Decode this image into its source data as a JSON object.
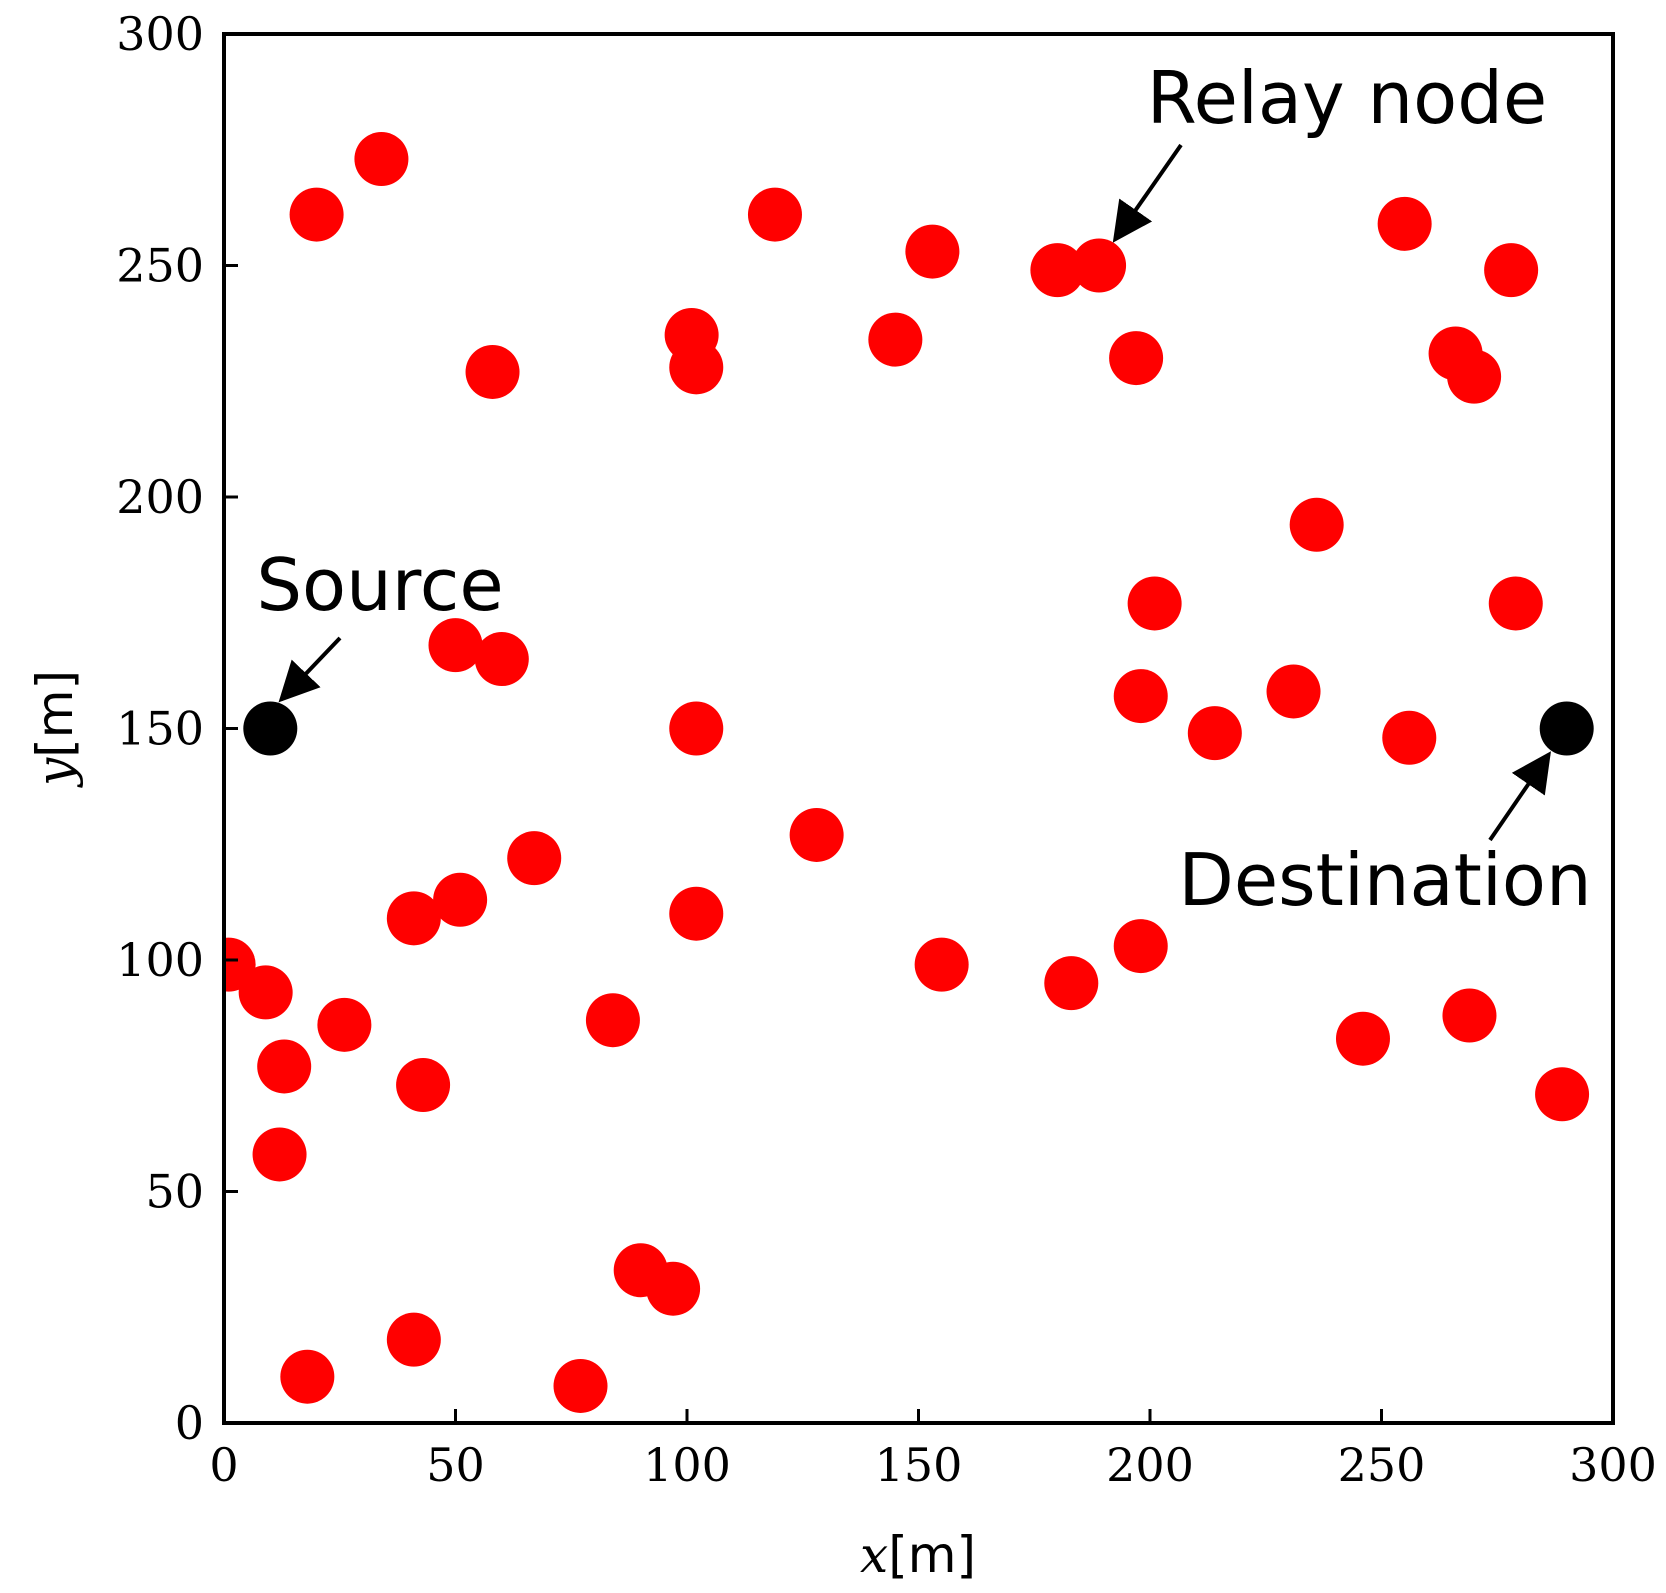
{
  "chart_data": {
    "type": "scatter",
    "xlim": [
      0,
      300
    ],
    "ylim": [
      0,
      300
    ],
    "xticks": [
      0,
      50,
      100,
      150,
      200,
      250,
      300
    ],
    "yticks": [
      0,
      50,
      100,
      150,
      200,
      250,
      300
    ],
    "xlabel": {
      "var": "x",
      "unit": "[m]"
    },
    "ylabel": {
      "var": "y",
      "unit": "[m]"
    },
    "grid": false,
    "series": [
      {
        "role": "relay",
        "color": "#ff0000",
        "points": [
          [
            34,
            273
          ],
          [
            20,
            261
          ],
          [
            119,
            261
          ],
          [
            153,
            253
          ],
          [
            180,
            249
          ],
          [
            189,
            250
          ],
          [
            255,
            259
          ],
          [
            278,
            249
          ],
          [
            101,
            235
          ],
          [
            102,
            228
          ],
          [
            58,
            227
          ],
          [
            145,
            234
          ],
          [
            197,
            230
          ],
          [
            266,
            231
          ],
          [
            270,
            226
          ],
          [
            236,
            194
          ],
          [
            201,
            177
          ],
          [
            279,
            177
          ],
          [
            50,
            168
          ],
          [
            60,
            165
          ],
          [
            198,
            157
          ],
          [
            231,
            158
          ],
          [
            102,
            150
          ],
          [
            214,
            149
          ],
          [
            256,
            148
          ],
          [
            128,
            127
          ],
          [
            67,
            122
          ],
          [
            51,
            113
          ],
          [
            41,
            109
          ],
          [
            102,
            110
          ],
          [
            1,
            99
          ],
          [
            9,
            93
          ],
          [
            155,
            99
          ],
          [
            183,
            95
          ],
          [
            198,
            103
          ],
          [
            26,
            86
          ],
          [
            84,
            87
          ],
          [
            246,
            83
          ],
          [
            269,
            88
          ],
          [
            13,
            77
          ],
          [
            43,
            73
          ],
          [
            289,
            71
          ],
          [
            12,
            58
          ],
          [
            90,
            33
          ],
          [
            97,
            29
          ],
          [
            18,
            10
          ],
          [
            41,
            18
          ],
          [
            77,
            8
          ]
        ]
      },
      {
        "role": "endpoints",
        "color": "#000000",
        "points": [
          [
            10,
            150
          ],
          [
            290,
            150
          ]
        ]
      }
    ],
    "annotations": [
      {
        "text": "Source",
        "target": [
          10,
          150
        ]
      },
      {
        "text": "Relay node",
        "target": [
          189,
          250
        ]
      },
      {
        "text": "Destination",
        "target": [
          290,
          150
        ]
      }
    ]
  }
}
